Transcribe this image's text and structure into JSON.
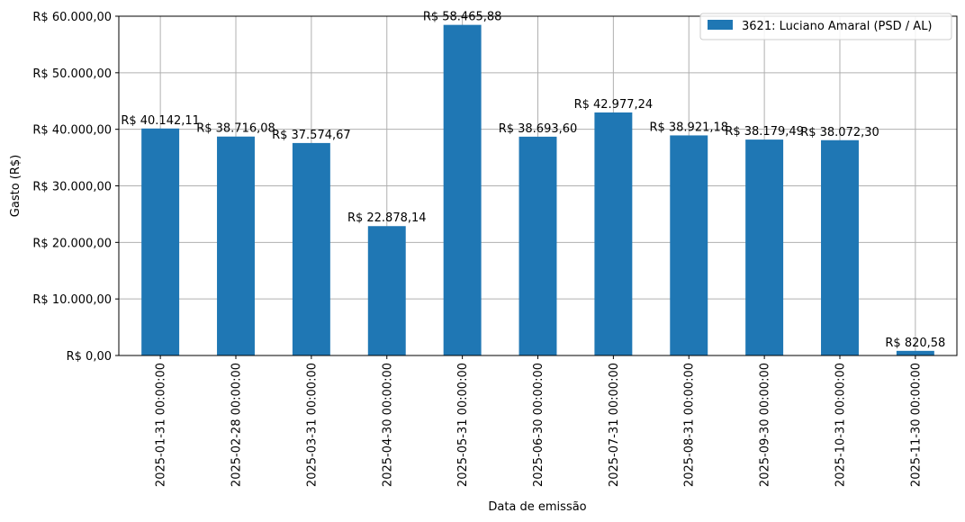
{
  "chart_data": {
    "type": "bar",
    "categories": [
      "2025-01-31 00:00:00",
      "2025-02-28 00:00:00",
      "2025-03-31 00:00:00",
      "2025-04-30 00:00:00",
      "2025-05-31 00:00:00",
      "2025-06-30 00:00:00",
      "2025-07-31 00:00:00",
      "2025-08-31 00:00:00",
      "2025-09-30 00:00:00",
      "2025-10-31 00:00:00",
      "2025-11-30 00:00:00"
    ],
    "series": [
      {
        "name": "3621: Luciano Amaral (PSD / AL)",
        "values": [
          40142.11,
          38716.08,
          37574.67,
          22878.14,
          58465.88,
          38693.6,
          42977.24,
          38921.18,
          38179.49,
          38072.3,
          820.58
        ],
        "labels": [
          "R$ 40.142,11",
          "R$ 38.716,08",
          "R$ 37.574,67",
          "R$ 22.878,14",
          "R$ 58.465,88",
          "R$ 38.693,60",
          "R$ 42.977,24",
          "R$ 38.921,18",
          "R$ 38.179,49",
          "R$ 38.072,30",
          "R$ 820,58"
        ],
        "color": "#1f77b4"
      }
    ],
    "title": "",
    "xlabel": "Data de emissão",
    "ylabel": "Gasto (R$)",
    "ylim": [
      0,
      60000
    ],
    "yticks": [
      0,
      10000,
      20000,
      30000,
      40000,
      50000,
      60000
    ],
    "ytick_labels": [
      "R$ 0,00",
      "R$ 10.000,00",
      "R$ 20.000,00",
      "R$ 30.000,00",
      "R$ 40.000,00",
      "R$ 50.000,00",
      "R$ 60.000,00"
    ],
    "grid": true,
    "legend_position": "top-right"
  }
}
